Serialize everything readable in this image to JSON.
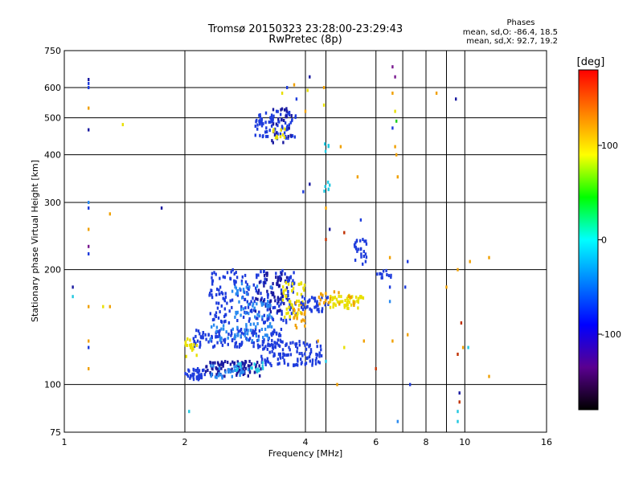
{
  "chart_data": {
    "type": "scatter",
    "title": "Tromsø 20150323 23:28:00-23:29:43",
    "subtitle": "RwPretec (8p)",
    "xlabel": "Frequency [MHz]",
    "ylabel": "Stationary phase Virtual Height [km]",
    "x_scale": "log",
    "y_scale": "log",
    "xlim": [
      1,
      16
    ],
    "ylim": [
      75,
      750
    ],
    "x_ticks": [
      1,
      2,
      4,
      6,
      8,
      10,
      16
    ],
    "y_ticks": [
      75,
      100,
      200,
      300,
      400,
      500,
      600,
      750
    ],
    "grid": true,
    "phase_stats": {
      "heading": "Phases",
      "line_o": "mean, sd,O: -86.4, 18.5",
      "line_x": "mean, sd,X:  92.7, 19.2"
    },
    "colorbar": {
      "label": "[deg]",
      "ticks": [
        100,
        0,
        -100
      ],
      "range": [
        -180,
        180
      ],
      "colors": [
        "#000000",
        "#5a0090",
        "#0000ff",
        "#0080ff",
        "#00ffff",
        "#00ff00",
        "#ffff00",
        "#ff8000",
        "#ff0000"
      ]
    },
    "point_colors": {
      "blue": "#1e3cdc",
      "navy": "#1a1aa0",
      "sky": "#2a8af0",
      "cyan": "#20c8e0",
      "yellow": "#e8e000",
      "orange": "#f0a000",
      "red": "#c03000",
      "purple": "#7a1a90"
    },
    "clusters": [
      {
        "color": "blue",
        "x": [
          2.0,
          2.25
        ],
        "y": [
          103,
          110
        ],
        "n": 40
      },
      {
        "color": "navy",
        "x": [
          2.25,
          3.1
        ],
        "y": [
          105,
          115
        ],
        "n": 90
      },
      {
        "color": "sky",
        "x": [
          2.3,
          2.9
        ],
        "y": [
          104,
          112
        ],
        "n": 30
      },
      {
        "color": "blue",
        "x": [
          3.1,
          4.4
        ],
        "y": [
          112,
          130
        ],
        "n": 110
      },
      {
        "color": "cyan",
        "x": [
          2.6,
          3.2
        ],
        "y": [
          108,
          114
        ],
        "n": 15
      },
      {
        "color": "blue",
        "x": [
          2.1,
          3.5
        ],
        "y": [
          125,
          140
        ],
        "n": 130
      },
      {
        "color": "sky",
        "x": [
          2.3,
          3.3
        ],
        "y": [
          130,
          145
        ],
        "n": 50
      },
      {
        "color": "yellow",
        "x": [
          2.0,
          2.15
        ],
        "y": [
          118,
          132
        ],
        "n": 18
      },
      {
        "color": "blue",
        "x": [
          2.3,
          3.8
        ],
        "y": [
          145,
          200
        ],
        "n": 200
      },
      {
        "color": "navy",
        "x": [
          3.0,
          3.6
        ],
        "y": [
          155,
          200
        ],
        "n": 60
      },
      {
        "color": "sky",
        "x": [
          2.6,
          3.3
        ],
        "y": [
          150,
          185
        ],
        "n": 50
      },
      {
        "color": "yellow",
        "x": [
          3.5,
          4.0
        ],
        "y": [
          150,
          185
        ],
        "n": 45
      },
      {
        "color": "orange",
        "x": [
          3.7,
          4.0
        ],
        "y": [
          140,
          165
        ],
        "n": 20
      },
      {
        "color": "blue",
        "x": [
          3.9,
          4.6
        ],
        "y": [
          155,
          170
        ],
        "n": 40
      },
      {
        "color": "yellow",
        "x": [
          4.6,
          5.6
        ],
        "y": [
          158,
          172
        ],
        "n": 55
      },
      {
        "color": "orange",
        "x": [
          4.3,
          5.3
        ],
        "y": [
          160,
          175
        ],
        "n": 20
      },
      {
        "color": "blue",
        "x": [
          3.0,
          3.8
        ],
        "y": [
          440,
          520
        ],
        "n": 80
      },
      {
        "color": "navy",
        "x": [
          3.3,
          3.7
        ],
        "y": [
          430,
          530
        ],
        "n": 25
      },
      {
        "color": "yellow",
        "x": [
          3.3,
          3.6
        ],
        "y": [
          440,
          470
        ],
        "n": 10
      },
      {
        "color": "blue",
        "x": [
          5.3,
          5.7
        ],
        "y": [
          205,
          240
        ],
        "n": 25
      },
      {
        "color": "blue",
        "x": [
          6.0,
          6.6
        ],
        "y": [
          190,
          200
        ],
        "n": 12
      },
      {
        "color": "cyan",
        "x": [
          4.45,
          4.6
        ],
        "y": [
          320,
          460
        ],
        "n": 10
      }
    ],
    "scattered_points": [
      {
        "x": 1.15,
        "y": 615,
        "color": "blue"
      },
      {
        "x": 1.15,
        "y": 600,
        "color": "blue"
      },
      {
        "x": 1.15,
        "y": 630,
        "color": "navy"
      },
      {
        "x": 1.15,
        "y": 530,
        "color": "orange"
      },
      {
        "x": 1.15,
        "y": 465,
        "color": "navy"
      },
      {
        "x": 1.15,
        "y": 300,
        "color": "sky"
      },
      {
        "x": 1.15,
        "y": 290,
        "color": "blue"
      },
      {
        "x": 1.15,
        "y": 255,
        "color": "orange"
      },
      {
        "x": 1.15,
        "y": 230,
        "color": "purple"
      },
      {
        "x": 1.15,
        "y": 220,
        "color": "blue"
      },
      {
        "x": 1.15,
        "y": 160,
        "color": "orange"
      },
      {
        "x": 1.15,
        "y": 130,
        "color": "orange"
      },
      {
        "x": 1.15,
        "y": 125,
        "color": "blue"
      },
      {
        "x": 1.15,
        "y": 110,
        "color": "orange"
      },
      {
        "x": 1.05,
        "y": 180,
        "color": "navy"
      },
      {
        "x": 1.05,
        "y": 170,
        "color": "cyan"
      },
      {
        "x": 1.3,
        "y": 280,
        "color": "orange"
      },
      {
        "x": 1.4,
        "y": 480,
        "color": "yellow"
      },
      {
        "x": 1.25,
        "y": 160,
        "color": "yellow"
      },
      {
        "x": 1.3,
        "y": 160,
        "color": "orange"
      },
      {
        "x": 1.75,
        "y": 290,
        "color": "navy"
      },
      {
        "x": 2.05,
        "y": 85,
        "color": "cyan"
      },
      {
        "x": 3.5,
        "y": 580,
        "color": "yellow"
      },
      {
        "x": 3.6,
        "y": 600,
        "color": "blue"
      },
      {
        "x": 3.75,
        "y": 610,
        "color": "orange"
      },
      {
        "x": 3.8,
        "y": 560,
        "color": "blue"
      },
      {
        "x": 4.1,
        "y": 640,
        "color": "navy"
      },
      {
        "x": 4.05,
        "y": 590,
        "color": "yellow"
      },
      {
        "x": 4.0,
        "y": 520,
        "color": "orange"
      },
      {
        "x": 4.45,
        "y": 600,
        "color": "orange"
      },
      {
        "x": 4.45,
        "y": 540,
        "color": "yellow"
      },
      {
        "x": 3.95,
        "y": 320,
        "color": "blue"
      },
      {
        "x": 4.1,
        "y": 335,
        "color": "navy"
      },
      {
        "x": 4.5,
        "y": 290,
        "color": "orange"
      },
      {
        "x": 4.5,
        "y": 240,
        "color": "red"
      },
      {
        "x": 4.6,
        "y": 255,
        "color": "navy"
      },
      {
        "x": 4.9,
        "y": 420,
        "color": "orange"
      },
      {
        "x": 5.4,
        "y": 350,
        "color": "orange"
      },
      {
        "x": 5.5,
        "y": 270,
        "color": "blue"
      },
      {
        "x": 5.0,
        "y": 250,
        "color": "red"
      },
      {
        "x": 4.3,
        "y": 130,
        "color": "orange"
      },
      {
        "x": 4.5,
        "y": 115,
        "color": "cyan"
      },
      {
        "x": 4.8,
        "y": 100,
        "color": "orange"
      },
      {
        "x": 5.0,
        "y": 125,
        "color": "yellow"
      },
      {
        "x": 5.6,
        "y": 130,
        "color": "orange"
      },
      {
        "x": 6.0,
        "y": 110,
        "color": "red"
      },
      {
        "x": 6.6,
        "y": 680,
        "color": "purple"
      },
      {
        "x": 6.7,
        "y": 640,
        "color": "purple"
      },
      {
        "x": 6.6,
        "y": 580,
        "color": "orange"
      },
      {
        "x": 6.7,
        "y": 520,
        "color": "yellow"
      },
      {
        "x": 6.75,
        "y": 490,
        "color": "green"
      },
      {
        "x": 6.6,
        "y": 470,
        "color": "blue"
      },
      {
        "x": 6.7,
        "y": 420,
        "color": "orange"
      },
      {
        "x": 6.75,
        "y": 400,
        "color": "orange"
      },
      {
        "x": 6.8,
        "y": 350,
        "color": "orange"
      },
      {
        "x": 6.5,
        "y": 215,
        "color": "orange"
      },
      {
        "x": 6.5,
        "y": 180,
        "color": "blue"
      },
      {
        "x": 6.5,
        "y": 165,
        "color": "sky"
      },
      {
        "x": 6.6,
        "y": 130,
        "color": "orange"
      },
      {
        "x": 6.8,
        "y": 80,
        "color": "sky"
      },
      {
        "x": 7.2,
        "y": 210,
        "color": "blue"
      },
      {
        "x": 7.1,
        "y": 180,
        "color": "blue"
      },
      {
        "x": 7.2,
        "y": 135,
        "color": "orange"
      },
      {
        "x": 7.3,
        "y": 100,
        "color": "blue"
      },
      {
        "x": 8.5,
        "y": 580,
        "color": "orange"
      },
      {
        "x": 9.5,
        "y": 560,
        "color": "navy"
      },
      {
        "x": 9.0,
        "y": 180,
        "color": "orange"
      },
      {
        "x": 9.6,
        "y": 200,
        "color": "orange"
      },
      {
        "x": 9.8,
        "y": 145,
        "color": "red"
      },
      {
        "x": 9.9,
        "y": 125,
        "color": "orange"
      },
      {
        "x": 9.6,
        "y": 120,
        "color": "red"
      },
      {
        "x": 9.7,
        "y": 95,
        "color": "navy"
      },
      {
        "x": 9.7,
        "y": 90,
        "color": "red"
      },
      {
        "x": 9.6,
        "y": 85,
        "color": "cyan"
      },
      {
        "x": 9.6,
        "y": 80,
        "color": "cyan"
      },
      {
        "x": 10.3,
        "y": 210,
        "color": "orange"
      },
      {
        "x": 10.2,
        "y": 125,
        "color": "cyan"
      },
      {
        "x": 11.5,
        "y": 215,
        "color": "orange"
      },
      {
        "x": 11.5,
        "y": 105,
        "color": "orange"
      }
    ]
  }
}
